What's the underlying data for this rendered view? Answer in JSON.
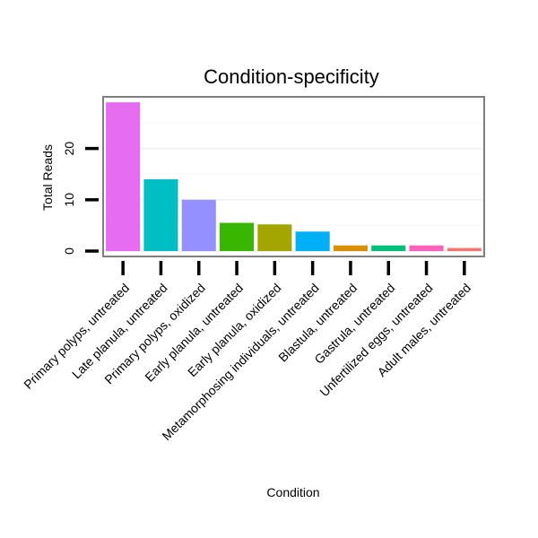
{
  "chart_data": {
    "type": "bar",
    "title": "Condition-specificity",
    "xlabel": "Condition",
    "ylabel": "Total Reads",
    "categories": [
      "Primary polyps, untreated",
      "Late planula, untreated",
      "Primary polyps, oxidized",
      "Early planula, untreated",
      "Early planula, oxidized",
      "Metamorphosing individuals, untreated",
      "Blastula, untreated",
      "Gastrula, untreated",
      "Unfertilized eggs, untreated",
      "Adult males, untreated"
    ],
    "values": [
      29,
      14,
      10,
      5.5,
      5.2,
      3.8,
      1.1,
      1.1,
      1.1,
      0.6
    ],
    "colors": [
      "#e36cf1",
      "#00bfc4",
      "#9590ff",
      "#39b600",
      "#a3a500",
      "#00b0f6",
      "#d89000",
      "#00bf7d",
      "#ff62bc",
      "#f8766d"
    ],
    "ylim": [
      0,
      30
    ],
    "yticks": [
      0,
      10,
      20
    ],
    "grid": true,
    "legend": "none"
  }
}
